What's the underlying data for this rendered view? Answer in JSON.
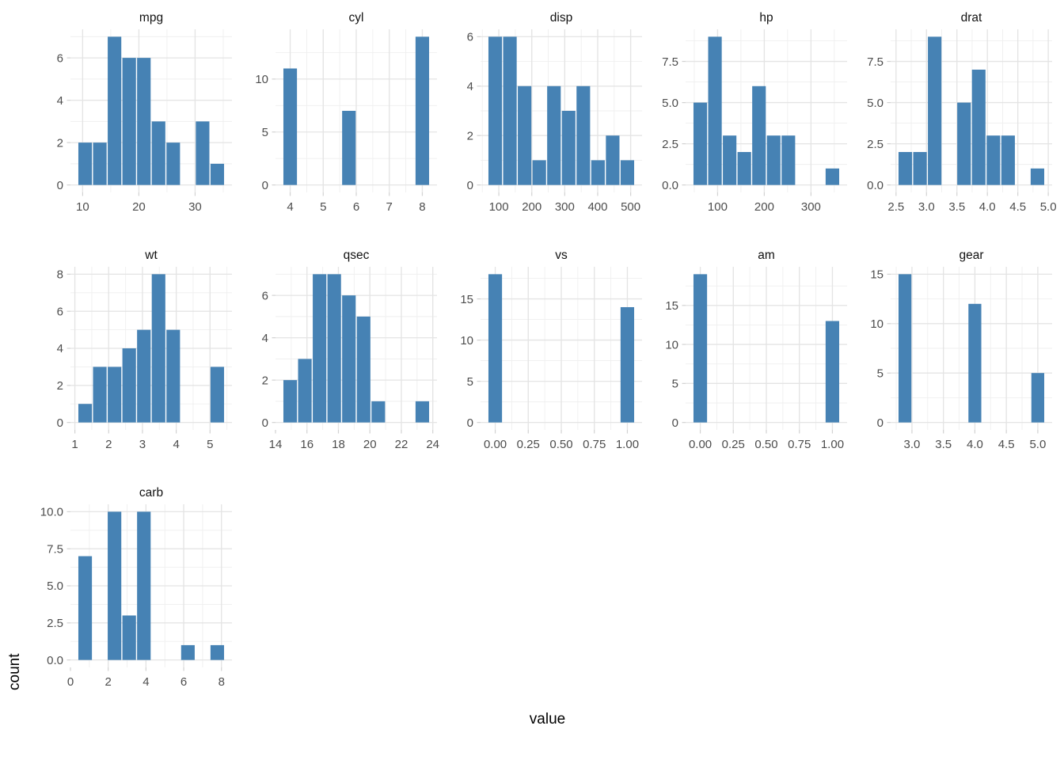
{
  "chart_data": {
    "type": "bar",
    "subtype": "faceted-histograms",
    "figure_xlabel": "value",
    "figure_ylabel": "count",
    "bar_color": "#4682B4",
    "grid_major_color": "#e4e4e4",
    "grid_minor_color": "#efefef",
    "tick_mark_color": "#d2d2d2",
    "tick_label_color": "#4d4d4d",
    "strip_text_color": "#111111",
    "background": "#ffffff",
    "layout": {
      "columns": 5,
      "rows": 3,
      "grid": "on",
      "legend": "none",
      "scales": "free"
    },
    "facets": [
      {
        "title": "mpg",
        "xdomain": [
          9.1389,
          35.25
        ],
        "ymax": 7,
        "bars": [
          [
            9.1389,
            11.75,
            2
          ],
          [
            11.75,
            14.3611,
            2
          ],
          [
            14.3611,
            16.9722,
            7
          ],
          [
            16.9722,
            19.5833,
            6
          ],
          [
            19.5833,
            22.1944,
            6
          ],
          [
            22.1944,
            24.8056,
            3
          ],
          [
            24.8056,
            27.4167,
            2
          ],
          [
            30.0278,
            32.6389,
            3
          ],
          [
            32.6389,
            35.25,
            1
          ]
        ],
        "xticks": [
          10,
          20,
          30
        ],
        "xtick_labels": [
          "10",
          "20",
          "30"
        ],
        "yticks": [
          0,
          2,
          4,
          6
        ],
        "ytick_labels": [
          "0",
          "2",
          "4",
          "6"
        ]
      },
      {
        "title": "cyl",
        "xdomain": [
          3.7778,
          8.2222
        ],
        "ymax": 14,
        "bars": [
          [
            3.7778,
            4.2222,
            11
          ],
          [
            5.5556,
            6.0,
            7
          ],
          [
            7.7778,
            8.2222,
            14
          ]
        ],
        "xticks": [
          4,
          5,
          6,
          7,
          8
        ],
        "xtick_labels": [
          "4",
          "5",
          "6",
          "7",
          "8"
        ],
        "yticks": [
          0,
          5,
          10
        ],
        "ytick_labels": [
          "0",
          "5",
          "10"
        ]
      },
      {
        "title": "disp",
        "xdomain": [
          66.8156,
          512.26
        ],
        "ymax": 6,
        "bars": [
          [
            66.8156,
            111.36,
            6
          ],
          [
            111.36,
            155.9044,
            6
          ],
          [
            155.9044,
            200.4489,
            4
          ],
          [
            200.4489,
            244.9933,
            1
          ],
          [
            244.9933,
            289.5378,
            4
          ],
          [
            289.5378,
            334.0822,
            3
          ],
          [
            334.0822,
            378.6267,
            4
          ],
          [
            378.6267,
            423.1711,
            1
          ],
          [
            423.1711,
            467.7156,
            2
          ],
          [
            467.7156,
            512.26,
            1
          ]
        ],
        "xticks": [
          100,
          200,
          300,
          400,
          500
        ],
        "xtick_labels": [
          "100",
          "200",
          "300",
          "400",
          "500"
        ],
        "yticks": [
          0,
          2,
          4,
          6
        ],
        "ytick_labels": [
          "0",
          "2",
          "4",
          "6"
        ]
      },
      {
        "title": "hp",
        "xdomain": [
          47.1667,
          361.6111
        ],
        "ymax": 9,
        "bars": [
          [
            47.1667,
            78.6111,
            5
          ],
          [
            78.6111,
            110.0556,
            9
          ],
          [
            110.0556,
            141.5,
            3
          ],
          [
            141.5,
            172.9444,
            2
          ],
          [
            172.9444,
            204.3889,
            6
          ],
          [
            204.3889,
            235.8333,
            3
          ],
          [
            235.8333,
            267.2778,
            3
          ],
          [
            330.1667,
            361.6111,
            1
          ]
        ],
        "xticks": [
          100,
          200,
          300
        ],
        "xtick_labels": [
          "100",
          "200",
          "300"
        ],
        "yticks": [
          0,
          2.5,
          5,
          7.5
        ],
        "ytick_labels": [
          "0.0",
          "2.5",
          "5.0",
          "7.5"
        ]
      },
      {
        "title": "drat",
        "xdomain": [
          2.5317,
          4.9428
        ],
        "ymax": 9,
        "bars": [
          [
            2.5317,
            2.7728,
            2
          ],
          [
            2.7728,
            3.0139,
            2
          ],
          [
            3.0139,
            3.255,
            9
          ],
          [
            3.4961,
            3.7372,
            5
          ],
          [
            3.7372,
            3.9783,
            7
          ],
          [
            3.9783,
            4.2194,
            3
          ],
          [
            4.2194,
            4.4606,
            3
          ],
          [
            4.7017,
            4.9428,
            1
          ]
        ],
        "xticks": [
          2.5,
          3.0,
          3.5,
          4.0,
          4.5,
          5.0
        ],
        "xtick_labels": [
          "2.5",
          "3.0",
          "3.5",
          "4.0",
          "4.5",
          "5.0"
        ],
        "yticks": [
          0,
          2.5,
          5,
          7.5
        ],
        "ytick_labels": [
          "0.0",
          "2.5",
          "5.0",
          "7.5"
        ]
      },
      {
        "title": "wt",
        "xdomain": [
          1.0864,
          5.432
        ],
        "ymax": 8,
        "bars": [
          [
            1.0864,
            1.5209,
            1
          ],
          [
            1.5209,
            1.9555,
            3
          ],
          [
            1.9555,
            2.3901,
            3
          ],
          [
            2.3901,
            2.8246,
            4
          ],
          [
            2.8246,
            3.2592,
            5
          ],
          [
            3.2592,
            3.6937,
            8
          ],
          [
            3.6937,
            4.1283,
            5
          ],
          [
            4.9974,
            5.432,
            3
          ]
        ],
        "xticks": [
          1,
          2,
          3,
          4,
          5
        ],
        "xtick_labels": [
          "1",
          "2",
          "3",
          "4",
          "5"
        ],
        "yticks": [
          0,
          2,
          4,
          6,
          8
        ],
        "ytick_labels": [
          "0",
          "2",
          "4",
          "6",
          "8"
        ]
      },
      {
        "title": "qsec",
        "xdomain": [
          14.4667,
          23.8
        ],
        "ymax": 7,
        "bars": [
          [
            14.4667,
            15.4,
            2
          ],
          [
            15.4,
            16.3333,
            3
          ],
          [
            16.3333,
            17.2667,
            7
          ],
          [
            17.2667,
            18.2,
            7
          ],
          [
            18.2,
            19.1333,
            6
          ],
          [
            19.1333,
            20.0667,
            5
          ],
          [
            20.0667,
            21.0,
            1
          ],
          [
            22.8667,
            23.8,
            1
          ]
        ],
        "xticks": [
          14,
          16,
          18,
          20,
          22,
          24
        ],
        "xtick_labels": [
          "14",
          "16",
          "18",
          "20",
          "22",
          "24"
        ],
        "yticks": [
          0,
          2,
          4,
          6
        ],
        "ytick_labels": [
          "0",
          "2",
          "4",
          "6"
        ]
      },
      {
        "title": "vs",
        "xdomain": [
          -0.0556,
          1.0556
        ],
        "ymax": 18,
        "bars": [
          [
            -0.0556,
            0.0556,
            18
          ],
          [
            0.9444,
            1.0556,
            14
          ]
        ],
        "xticks": [
          0,
          0.25,
          0.5,
          0.75,
          1
        ],
        "xtick_labels": [
          "0.00",
          "0.25",
          "0.50",
          "0.75",
          "1.00"
        ],
        "yticks": [
          0,
          5,
          10,
          15
        ],
        "ytick_labels": [
          "0",
          "5",
          "10",
          "15"
        ]
      },
      {
        "title": "am",
        "xdomain": [
          -0.0556,
          1.0556
        ],
        "ymax": 19,
        "bars": [
          [
            -0.0556,
            0.0556,
            19
          ],
          [
            0.9444,
            1.0556,
            13
          ]
        ],
        "xticks": [
          0,
          0.25,
          0.5,
          0.75,
          1
        ],
        "xtick_labels": [
          "0.00",
          "0.25",
          "0.50",
          "0.75",
          "1.00"
        ],
        "yticks": [
          0,
          5,
          10,
          15
        ],
        "ytick_labels": [
          "0",
          "5",
          "10",
          "15"
        ]
      },
      {
        "title": "gear",
        "xdomain": [
          2.7778,
          5.1111
        ],
        "ymax": 15,
        "bars": [
          [
            2.7778,
            3.0,
            15
          ],
          [
            3.8889,
            4.1111,
            12
          ],
          [
            4.8889,
            5.1111,
            5
          ]
        ],
        "xticks": [
          3.0,
          3.5,
          4.0,
          4.5,
          5.0
        ],
        "xtick_labels": [
          "3.0",
          "3.5",
          "4.0",
          "4.5",
          "5.0"
        ],
        "yticks": [
          0,
          5,
          10,
          15
        ],
        "ytick_labels": [
          "0",
          "5",
          "10",
          "15"
        ]
      },
      {
        "title": "carb",
        "xdomain": [
          0.3889,
          8.1667
        ],
        "ymax": 10,
        "bars": [
          [
            0.3889,
            1.1667,
            7
          ],
          [
            1.9444,
            2.7222,
            10
          ],
          [
            2.7222,
            3.5,
            3
          ],
          [
            3.5,
            4.2778,
            10
          ],
          [
            5.8333,
            6.6111,
            1
          ],
          [
            7.3889,
            8.1667,
            1
          ]
        ],
        "xticks": [
          0,
          2,
          4,
          6,
          8
        ],
        "xtick_labels": [
          "0",
          "2",
          "4",
          "6",
          "8"
        ],
        "yticks": [
          0,
          2.5,
          5,
          7.5,
          10
        ],
        "ytick_labels": [
          "0.0",
          "2.5",
          "5.0",
          "7.5",
          "10.0"
        ]
      }
    ]
  }
}
